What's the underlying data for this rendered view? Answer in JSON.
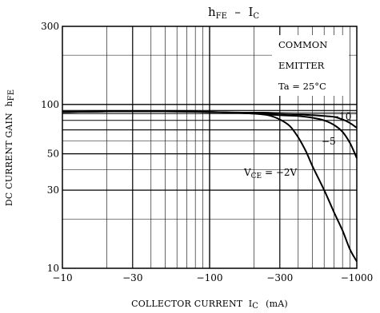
{
  "chart_data": {
    "type": "line",
    "title": {
      "main": "h",
      "sub1": "FE",
      "dash": "  –  I",
      "sub2": "C"
    },
    "xlabel": {
      "main": "COLLECTOR CURRENT  I",
      "sub": "C",
      "unit": "(mA)"
    },
    "ylabel": {
      "main": "DC CURRENT GAIN  h",
      "sub": "FE"
    },
    "x_scale": "log",
    "y_scale": "log",
    "xlim": [
      -10,
      -1000
    ],
    "ylim": [
      10,
      300
    ],
    "x_ticks": [
      -10,
      -30,
      -100,
      -300,
      -1000
    ],
    "x_tick_labels": [
      "−10",
      "−30",
      "−100",
      "−300",
      "−1000"
    ],
    "y_ticks": [
      10,
      30,
      50,
      100,
      300
    ],
    "y_tick_labels": [
      "10",
      "30",
      "50",
      "100",
      "300"
    ],
    "grid": true,
    "annotation": [
      "COMMON",
      "EMITTER",
      "Ta = 25°C"
    ],
    "series": [
      {
        "label_main": "V",
        "label_sub": "CE",
        "label_rest": " = −2V",
        "x": [
          -10,
          -30,
          -60,
          -100,
          -150,
          -200,
          -250,
          -300,
          -350,
          -400,
          -450,
          -500,
          -600,
          -700,
          -800,
          -900,
          -1000
        ],
        "y": [
          90,
          91,
          91,
          90,
          89,
          88,
          86,
          81,
          74,
          63,
          52,
          42,
          30,
          22,
          17,
          13,
          11
        ]
      },
      {
        "label_main": "−5",
        "x": [
          -10,
          -30,
          -100,
          -200,
          -300,
          -400,
          -500,
          -600,
          -700,
          -800,
          -900,
          -1000
        ],
        "y": [
          90,
          91,
          90,
          88,
          86,
          85,
          83,
          80,
          75,
          68,
          58,
          47
        ]
      },
      {
        "label_main": "−10",
        "x": [
          -10,
          -30,
          -100,
          -200,
          -300,
          -400,
          -500,
          -600,
          -700,
          -800,
          -900,
          -1000
        ],
        "y": [
          90,
          91,
          90,
          89,
          88,
          87,
          86,
          85,
          84,
          81,
          77,
          72
        ]
      }
    ]
  }
}
